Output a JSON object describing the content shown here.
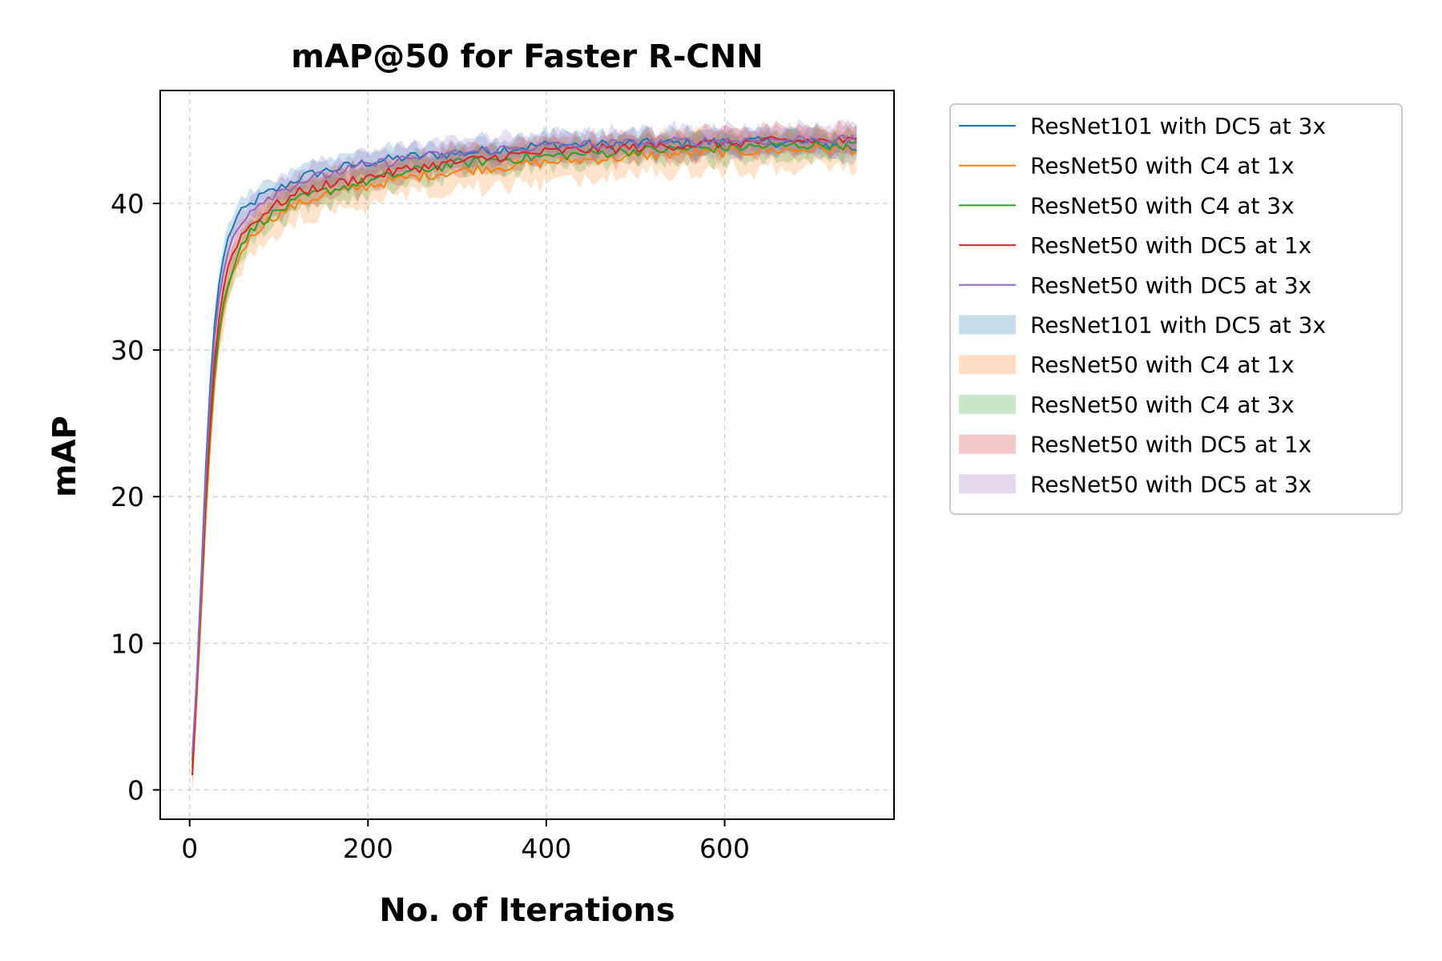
{
  "chart_data": {
    "type": "line",
    "title": "mAP@50 for Faster R-CNN",
    "xlabel": "No. of Iterations",
    "ylabel": "mAP",
    "xlim": [
      -33,
      790
    ],
    "ylim": [
      -2,
      47.7
    ],
    "xticks": [
      0,
      200,
      400,
      600
    ],
    "yticks": [
      0,
      10,
      20,
      30,
      40
    ],
    "grid": true,
    "legend_position": "outside-right",
    "series": [
      {
        "name": "ResNet101 with DC5 at 3x",
        "color": "#1f77b4",
        "x": [
          3,
          10,
          20,
          30,
          40,
          50,
          60,
          80,
          100,
          125,
          150,
          200,
          250,
          300,
          350,
          400,
          450,
          500,
          550,
          600,
          650,
          700,
          750
        ],
        "y": [
          2.0,
          10.0,
          25.0,
          33.5,
          37.0,
          38.8,
          39.5,
          40.5,
          41.0,
          41.8,
          42.2,
          42.8,
          43.2,
          43.4,
          43.7,
          44.0,
          44.0,
          44.1,
          44.1,
          44.2,
          44.2,
          44.1,
          43.7
        ],
        "band": 0.8
      },
      {
        "name": "ResNet50 with C4 at 1x",
        "color": "#ff7f0e",
        "x": [
          3,
          10,
          20,
          30,
          40,
          50,
          60,
          80,
          100,
          125,
          150,
          200,
          250,
          300,
          350,
          400,
          450,
          500,
          550,
          600,
          650,
          700,
          750
        ],
        "y": [
          1.0,
          8.5,
          21.0,
          29.5,
          33.5,
          35.5,
          37.0,
          38.5,
          39.3,
          40.0,
          40.6,
          41.2,
          41.8,
          42.2,
          42.5,
          42.8,
          43.0,
          43.2,
          43.4,
          43.5,
          43.6,
          43.7,
          43.7
        ],
        "band": 1.3
      },
      {
        "name": "ResNet50 with C4 at 3x",
        "color": "#2ca02c",
        "x": [
          3,
          10,
          20,
          30,
          40,
          50,
          60,
          80,
          100,
          125,
          150,
          200,
          250,
          300,
          350,
          400,
          450,
          500,
          550,
          600,
          650,
          700,
          750
        ],
        "y": [
          1.5,
          9.0,
          22.0,
          30.0,
          34.0,
          36.0,
          37.5,
          38.8,
          39.5,
          40.3,
          40.8,
          41.5,
          42.2,
          42.7,
          43.0,
          43.2,
          43.4,
          43.6,
          43.7,
          43.8,
          43.9,
          44.0,
          44.0
        ],
        "band": 0.9
      },
      {
        "name": "ResNet50 with DC5 at 1x",
        "color": "#d62728",
        "x": [
          3,
          10,
          20,
          30,
          40,
          50,
          60,
          80,
          100,
          125,
          150,
          200,
          250,
          300,
          350,
          400,
          450,
          500,
          550,
          600,
          650,
          700,
          750
        ],
        "y": [
          1.0,
          9.0,
          22.5,
          31.0,
          35.0,
          37.0,
          38.0,
          39.2,
          40.0,
          40.8,
          41.2,
          41.8,
          42.4,
          42.8,
          43.2,
          43.5,
          43.7,
          43.8,
          44.0,
          44.1,
          44.2,
          44.3,
          44.2
        ],
        "band": 0.9
      },
      {
        "name": "ResNet50 with DC5 at 3x",
        "color": "#9467bd",
        "x": [
          3,
          10,
          20,
          30,
          40,
          50,
          60,
          80,
          100,
          125,
          150,
          200,
          250,
          300,
          350,
          400,
          450,
          500,
          550,
          600,
          650,
          700,
          750
        ],
        "y": [
          2.5,
          9.5,
          24.0,
          32.5,
          36.0,
          38.0,
          39.0,
          40.2,
          40.8,
          41.5,
          41.9,
          42.6,
          43.1,
          43.4,
          43.7,
          43.9,
          44.0,
          44.1,
          44.2,
          44.3,
          44.3,
          44.4,
          44.3
        ],
        "band": 0.9
      }
    ],
    "legend_entries": [
      {
        "label": "ResNet101 with DC5 at 3x",
        "kind": "line",
        "color": "#1f77b4"
      },
      {
        "label": "ResNet50 with C4 at 1x",
        "kind": "line",
        "color": "#ff7f0e"
      },
      {
        "label": "ResNet50 with C4 at 3x",
        "kind": "line",
        "color": "#2ca02c"
      },
      {
        "label": "ResNet50 with DC5 at 1x",
        "kind": "line",
        "color": "#d62728"
      },
      {
        "label": "ResNet50 with DC5 at 3x",
        "kind": "line",
        "color": "#9467bd"
      },
      {
        "label": "ResNet101 with DC5 at 3x",
        "kind": "band",
        "color": "#1f77b4"
      },
      {
        "label": "ResNet50 with C4 at 1x",
        "kind": "band",
        "color": "#ff7f0e"
      },
      {
        "label": "ResNet50 with C4 at 3x",
        "kind": "band",
        "color": "#2ca02c"
      },
      {
        "label": "ResNet50 with DC5 at 1x",
        "kind": "band",
        "color": "#d62728"
      },
      {
        "label": "ResNet50 with DC5 at 3x",
        "kind": "band",
        "color": "#9467bd"
      }
    ]
  }
}
